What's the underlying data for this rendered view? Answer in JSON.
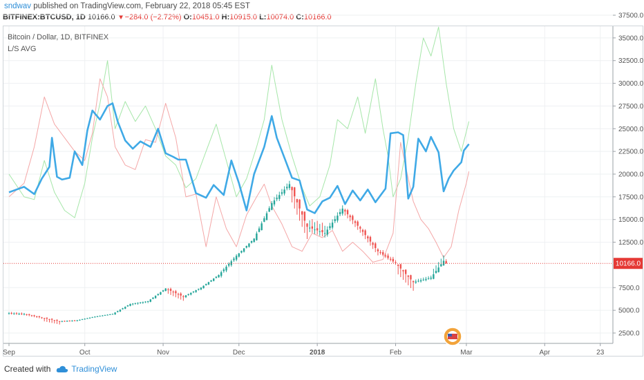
{
  "header": {
    "username": "sndwav",
    "published": "published on TradingView.com, February 22, 2018 05:45 EST",
    "symbol": "BITFINEX:BTCUSD, 1D",
    "last": "10166.0",
    "change_arrow": "▼",
    "change": "−284.0 (−2.72%)",
    "open_label": "O:",
    "open": "10451.0",
    "high_label": "H:",
    "high": "10915.0",
    "low_label": "L:",
    "low": "10074.0",
    "close_label": "C:",
    "close": "10166.0"
  },
  "legend": {
    "title": "Bitcoin / Dollar, 1D, BITFINEX",
    "indicator": "L/S AVG"
  },
  "footer": {
    "created_with": "Created with",
    "brand": "TradingView"
  },
  "colors": {
    "up": "#26a69a",
    "down": "#ef5350",
    "avg": "#3fa9e6",
    "longs": "#a5e6a8",
    "shorts": "#f4a6a6",
    "grid": "#eef0f2",
    "price_line": "#e53935"
  },
  "chart_data": {
    "type": "candlestick",
    "title": "Bitcoin / Dollar, 1D, BITFINEX",
    "last_price_label": "10166.0",
    "last_price": 10166,
    "y_ticks": [
      "37500.0",
      "35000.0",
      "32500.0",
      "30000.0",
      "27500.0",
      "25000.0",
      "22500.0",
      "20000.0",
      "17500.0",
      "15000.0",
      "12500.0",
      "7500.0",
      "5000.0",
      "2500.0"
    ],
    "y_tick_values": [
      37500,
      35000,
      32500,
      30000,
      27500,
      25000,
      22500,
      20000,
      17500,
      15000,
      12500,
      7500,
      5000,
      2500
    ],
    "ylim": [
      0,
      39000
    ],
    "x_ticks": [
      "Sep",
      "Oct",
      "Nov",
      "Dec",
      "2018",
      "Feb",
      "Mar",
      "Apr",
      "23"
    ],
    "x_tick_days": [
      0,
      30,
      61,
      91,
      122,
      153,
      181,
      212,
      234
    ],
    "x_range_days": [
      0,
      240
    ],
    "ohlc_weekly": [
      {
        "d": 0,
        "o": 4700,
        "h": 4950,
        "l": 4300,
        "c": 4600
      },
      {
        "d": 7,
        "o": 4600,
        "h": 4700,
        "l": 3900,
        "c": 4200
      },
      {
        "d": 14,
        "o": 4200,
        "h": 4250,
        "l": 3000,
        "c": 3800
      },
      {
        "d": 21,
        "o": 3800,
        "h": 4000,
        "l": 3600,
        "c": 3900
      },
      {
        "d": 28,
        "o": 3900,
        "h": 4400,
        "l": 3850,
        "c": 4300
      },
      {
        "d": 35,
        "o": 4300,
        "h": 4700,
        "l": 4250,
        "c": 4600
      },
      {
        "d": 42,
        "o": 4600,
        "h": 5800,
        "l": 4500,
        "c": 5700
      },
      {
        "d": 49,
        "o": 5700,
        "h": 6100,
        "l": 5400,
        "c": 6000
      },
      {
        "d": 56,
        "o": 6000,
        "h": 7500,
        "l": 5900,
        "c": 7400
      },
      {
        "d": 63,
        "o": 7400,
        "h": 7700,
        "l": 5500,
        "c": 6500
      },
      {
        "d": 70,
        "o": 6500,
        "h": 7600,
        "l": 6300,
        "c": 7500
      },
      {
        "d": 77,
        "o": 7500,
        "h": 9000,
        "l": 7400,
        "c": 8900
      },
      {
        "d": 84,
        "o": 8900,
        "h": 11400,
        "l": 8500,
        "c": 11000
      },
      {
        "d": 91,
        "o": 11000,
        "h": 13000,
        "l": 10800,
        "c": 12900
      },
      {
        "d": 98,
        "o": 12900,
        "h": 17300,
        "l": 12800,
        "c": 16800
      },
      {
        "d": 105,
        "o": 16800,
        "h": 19700,
        "l": 16300,
        "c": 18900
      },
      {
        "d": 112,
        "o": 18900,
        "h": 19000,
        "l": 11200,
        "c": 14200
      },
      {
        "d": 119,
        "o": 14200,
        "h": 16000,
        "l": 12500,
        "c": 13500
      },
      {
        "d": 126,
        "o": 13500,
        "h": 17000,
        "l": 13000,
        "c": 16200
      },
      {
        "d": 133,
        "o": 16200,
        "h": 16500,
        "l": 13000,
        "c": 14000
      },
      {
        "d": 140,
        "o": 14000,
        "h": 14300,
        "l": 10500,
        "c": 11500
      },
      {
        "d": 147,
        "o": 11500,
        "h": 12000,
        "l": 9800,
        "c": 10200
      },
      {
        "d": 154,
        "o": 10200,
        "h": 10300,
        "l": 6000,
        "c": 8100
      },
      {
        "d": 161,
        "o": 8100,
        "h": 9100,
        "l": 7800,
        "c": 8600
      },
      {
        "d": 168,
        "o": 8600,
        "h": 11800,
        "l": 8500,
        "c": 10450
      },
      {
        "d": 173,
        "o": 10451,
        "h": 10915,
        "l": 10074,
        "c": 10166
      }
    ],
    "series": [
      {
        "name": "L/S AVG",
        "points": [
          [
            0,
            18000
          ],
          [
            6,
            18600
          ],
          [
            10,
            17800
          ],
          [
            13,
            19500
          ],
          [
            16,
            20800
          ],
          [
            17,
            24000
          ],
          [
            19,
            19700
          ],
          [
            21,
            19400
          ],
          [
            24,
            19600
          ],
          [
            26,
            22500
          ],
          [
            29,
            21000
          ],
          [
            31,
            24800
          ],
          [
            33,
            27000
          ],
          [
            36,
            26000
          ],
          [
            39,
            27500
          ],
          [
            41,
            27800
          ],
          [
            43,
            25800
          ],
          [
            46,
            23700
          ],
          [
            49,
            22800
          ],
          [
            52,
            23600
          ],
          [
            56,
            23000
          ],
          [
            59,
            25000
          ],
          [
            62,
            22300
          ],
          [
            65,
            21900
          ],
          [
            67,
            21600
          ],
          [
            70,
            21600
          ],
          [
            74,
            17900
          ],
          [
            78,
            17400
          ],
          [
            81,
            18800
          ],
          [
            85,
            17700
          ],
          [
            88,
            21500
          ],
          [
            91,
            19000
          ],
          [
            94,
            16000
          ],
          [
            97,
            20000
          ],
          [
            101,
            23000
          ],
          [
            104,
            26400
          ],
          [
            106,
            24000
          ],
          [
            109,
            21800
          ],
          [
            112,
            19600
          ],
          [
            115,
            19300
          ],
          [
            118,
            16100
          ],
          [
            121,
            15700
          ],
          [
            124,
            17000
          ],
          [
            127,
            17400
          ],
          [
            130,
            18700
          ],
          [
            133,
            16700
          ],
          [
            136,
            18200
          ],
          [
            139,
            17100
          ],
          [
            142,
            18300
          ],
          [
            145,
            16900
          ],
          [
            149,
            18400
          ],
          [
            151,
            24500
          ],
          [
            154,
            24600
          ],
          [
            156,
            24300
          ],
          [
            158,
            17300
          ],
          [
            160,
            18600
          ],
          [
            162,
            23900
          ],
          [
            165,
            22500
          ],
          [
            167,
            24100
          ],
          [
            170,
            22400
          ],
          [
            172,
            18100
          ],
          [
            174,
            19500
          ],
          [
            176,
            20400
          ],
          [
            179,
            21300
          ],
          [
            180,
            22600
          ],
          [
            182,
            23300
          ]
        ]
      },
      {
        "name": "Longs",
        "points": [
          [
            0,
            20000
          ],
          [
            6,
            17500
          ],
          [
            10,
            17200
          ],
          [
            14,
            21500
          ],
          [
            18,
            18000
          ],
          [
            22,
            16000
          ],
          [
            26,
            15200
          ],
          [
            30,
            19000
          ],
          [
            33,
            24000
          ],
          [
            36,
            27800
          ],
          [
            39,
            32500
          ],
          [
            42,
            25000
          ],
          [
            46,
            28000
          ],
          [
            50,
            25800
          ],
          [
            54,
            27500
          ],
          [
            58,
            25000
          ],
          [
            62,
            22000
          ],
          [
            66,
            21000
          ],
          [
            70,
            18500
          ],
          [
            74,
            19500
          ],
          [
            78,
            22500
          ],
          [
            82,
            25500
          ],
          [
            86,
            21500
          ],
          [
            90,
            17500
          ],
          [
            94,
            19500
          ],
          [
            98,
            23000
          ],
          [
            101,
            26000
          ],
          [
            104,
            32000
          ],
          [
            108,
            26000
          ],
          [
            112,
            22000
          ],
          [
            116,
            18500
          ],
          [
            119,
            16500
          ],
          [
            123,
            17500
          ],
          [
            127,
            21000
          ],
          [
            130,
            26000
          ],
          [
            134,
            25000
          ],
          [
            138,
            28500
          ],
          [
            141,
            24500
          ],
          [
            145,
            30500
          ],
          [
            148,
            25000
          ],
          [
            150,
            22000
          ],
          [
            152,
            17500
          ],
          [
            155,
            19500
          ],
          [
            158,
            24000
          ],
          [
            161,
            30000
          ],
          [
            164,
            35000
          ],
          [
            167,
            33000
          ],
          [
            170,
            36200
          ],
          [
            173,
            30000
          ],
          [
            176,
            25000
          ],
          [
            179,
            22500
          ],
          [
            182,
            25800
          ]
        ]
      },
      {
        "name": "Shorts",
        "points": [
          [
            0,
            17500
          ],
          [
            6,
            19000
          ],
          [
            10,
            23000
          ],
          [
            14,
            28500
          ],
          [
            18,
            25500
          ],
          [
            22,
            24000
          ],
          [
            26,
            22500
          ],
          [
            30,
            21500
          ],
          [
            33,
            24500
          ],
          [
            36,
            30500
          ],
          [
            39,
            28500
          ],
          [
            42,
            23000
          ],
          [
            46,
            21000
          ],
          [
            50,
            20500
          ],
          [
            54,
            23800
          ],
          [
            58,
            23500
          ],
          [
            62,
            27800
          ],
          [
            66,
            24000
          ],
          [
            70,
            17500
          ],
          [
            74,
            17800
          ],
          [
            78,
            12000
          ],
          [
            82,
            17500
          ],
          [
            86,
            14000
          ],
          [
            90,
            12000
          ],
          [
            94,
            15500
          ],
          [
            98,
            17500
          ],
          [
            101,
            18900
          ],
          [
            104,
            16500
          ],
          [
            108,
            14500
          ],
          [
            112,
            12000
          ],
          [
            116,
            11500
          ],
          [
            120,
            13500
          ],
          [
            124,
            13000
          ],
          [
            128,
            13800
          ],
          [
            132,
            11500
          ],
          [
            136,
            12500
          ],
          [
            140,
            11500
          ],
          [
            144,
            10300
          ],
          [
            148,
            10600
          ],
          [
            152,
            13500
          ],
          [
            155,
            23500
          ],
          [
            158,
            19500
          ],
          [
            160,
            17000
          ],
          [
            163,
            15000
          ],
          [
            166,
            14000
          ],
          [
            169,
            12500
          ],
          [
            172,
            10800
          ],
          [
            175,
            12000
          ],
          [
            178,
            16000
          ],
          [
            181,
            19000
          ],
          [
            182,
            20300
          ]
        ]
      }
    ]
  }
}
